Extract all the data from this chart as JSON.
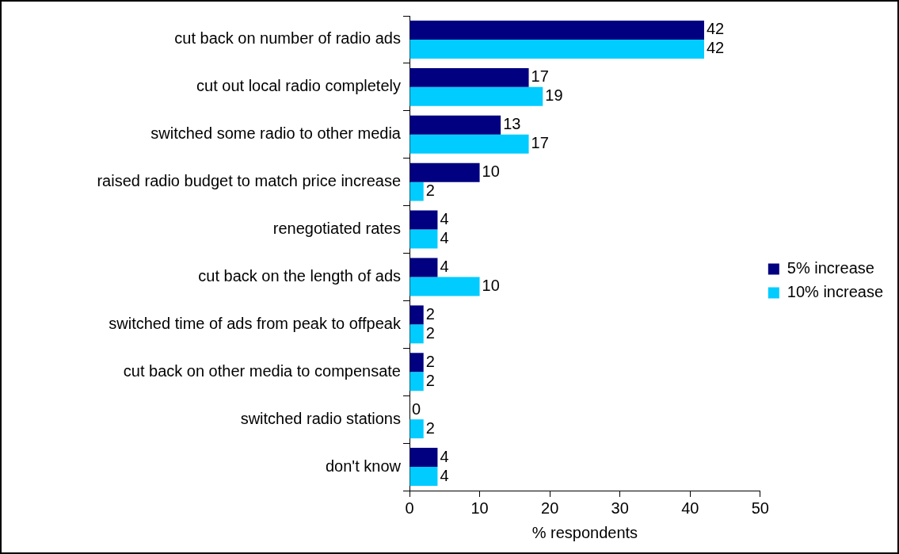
{
  "chart_data": {
    "type": "bar",
    "orientation": "horizontal",
    "xlabel": "% respondents",
    "categories": [
      "cut back on number of radio ads",
      "cut out local radio completely",
      "switched some radio to other media",
      "raised radio budget to match price increase",
      "renegotiated rates",
      "cut back on the length of ads",
      "switched time of ads from peak to offpeak",
      "cut back on other media to compensate",
      "switched radio stations",
      "don't know"
    ],
    "series": [
      {
        "name": "5% increase",
        "color": "#000080",
        "values": [
          42,
          17,
          13,
          10,
          4,
          4,
          2,
          2,
          0,
          4
        ]
      },
      {
        "name": "10% increase",
        "color": "#00ccff",
        "values": [
          42,
          19,
          17,
          2,
          4,
          10,
          2,
          2,
          2,
          4
        ]
      }
    ],
    "xlim": [
      0,
      50
    ],
    "xticks": [
      0,
      10,
      20,
      30,
      40,
      50
    ],
    "grid": false,
    "legend": "right",
    "data_labels": true
  }
}
